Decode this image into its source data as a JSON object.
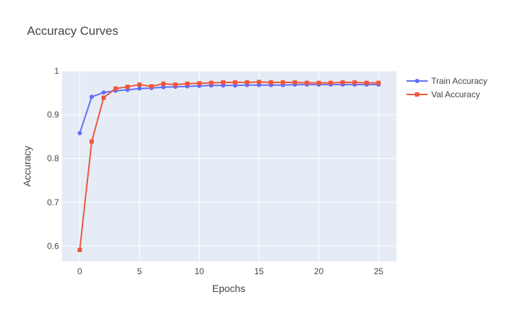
{
  "chart_data": {
    "type": "line",
    "title": "Accuracy Curves",
    "xlabel": "Epochs",
    "ylabel": "Accuracy",
    "xlim": [
      -1.5,
      26.5
    ],
    "ylim": [
      0.565,
      1.0
    ],
    "x_ticks": [
      0,
      5,
      10,
      15,
      20,
      25
    ],
    "y_ticks": [
      0.6,
      0.7,
      0.8,
      0.9,
      1
    ],
    "y_tick_labels": [
      "0.6",
      "0.7",
      "0.8",
      "0.9",
      "1"
    ],
    "grid": true,
    "legend_position": "top-right",
    "x": [
      0,
      1,
      2,
      3,
      4,
      5,
      6,
      7,
      8,
      9,
      10,
      11,
      12,
      13,
      14,
      15,
      16,
      17,
      18,
      19,
      20,
      21,
      22,
      23,
      24,
      25
    ],
    "series": [
      {
        "name": "Train Accuracy",
        "color": "#636efa",
        "marker": "circle",
        "values": [
          0.858,
          0.941,
          0.951,
          0.955,
          0.957,
          0.96,
          0.961,
          0.963,
          0.964,
          0.965,
          0.966,
          0.967,
          0.967,
          0.967,
          0.968,
          0.968,
          0.968,
          0.968,
          0.969,
          0.969,
          0.969,
          0.969,
          0.969,
          0.969,
          0.969,
          0.969
        ]
      },
      {
        "name": "Val Accuracy",
        "color": "#ef553b",
        "marker": "square",
        "values": [
          0.591,
          0.839,
          0.939,
          0.96,
          0.964,
          0.969,
          0.965,
          0.971,
          0.969,
          0.971,
          0.972,
          0.973,
          0.974,
          0.974,
          0.974,
          0.975,
          0.974,
          0.974,
          0.974,
          0.973,
          0.973,
          0.973,
          0.974,
          0.974,
          0.973,
          0.973
        ]
      }
    ]
  }
}
